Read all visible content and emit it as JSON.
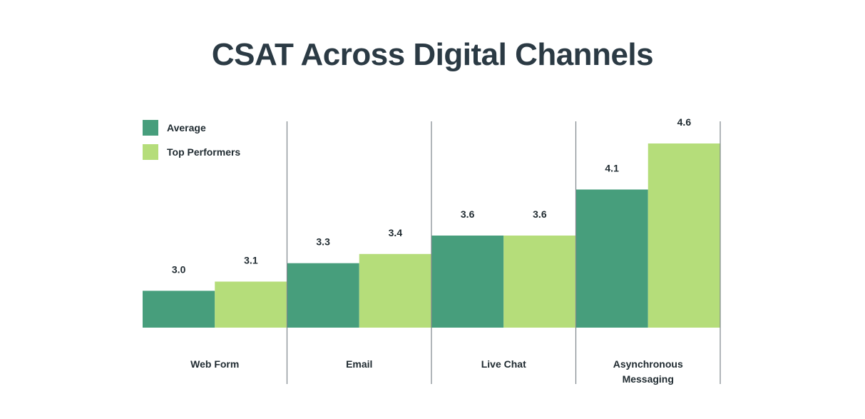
{
  "chart_data": {
    "type": "bar",
    "title": "CSAT Across Digital Channels",
    "categories": [
      "Web Form",
      "Email",
      "Live Chat",
      "Asynchronous Messaging"
    ],
    "category_lines": [
      [
        "Web Form"
      ],
      [
        "Email"
      ],
      [
        "Live Chat"
      ],
      [
        "Asynchronous",
        "Messaging"
      ]
    ],
    "series": [
      {
        "name": "Average",
        "values": [
          3.0,
          3.3,
          3.6,
          4.1
        ],
        "color": "#479e7c"
      },
      {
        "name": "Top Performers",
        "values": [
          3.1,
          3.4,
          3.6,
          4.6
        ],
        "color": "#b5dd7a"
      }
    ],
    "value_labels": [
      [
        "3.0",
        "3.3",
        "3.6",
        "4.1"
      ],
      [
        "3.1",
        "3.4",
        "3.6",
        "4.6"
      ]
    ],
    "ylim": [
      2.6,
      4.6
    ],
    "grid": false,
    "legend": "top-left",
    "xlabel": "",
    "ylabel": ""
  }
}
